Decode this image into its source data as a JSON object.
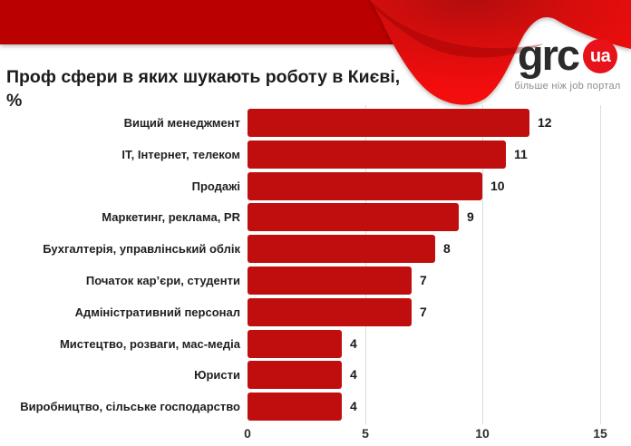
{
  "header": {
    "title": "Проф сфери в яких шукають роботу в Києві, %",
    "logo": {
      "text": "grc",
      "badge": "ua",
      "tagline": "більше ніж job портал"
    },
    "colors": {
      "band": "#BB0606",
      "swoosh_stops": [
        "#B30707",
        "#D60B0B",
        "#F31111"
      ],
      "accent_dark": "#8F0303",
      "badge_bg": "#E8121B"
    }
  },
  "chart_data": {
    "type": "bar",
    "orientation": "horizontal",
    "title": "Проф сфери в яких шукають роботу в Києві, %",
    "categories": [
      "Вищий менеджмент",
      "ІТ, Інтернет, телеком",
      "Продажі",
      "Маркетинг, реклама, PR",
      "Бухгалтерія, управлінський облік",
      "Початок кар’єри, студенти",
      "Адміністративний персонал",
      "Мистецтво, розваги, мас-медіа",
      "Юристи",
      "Виробництво, сільське господарство"
    ],
    "values": [
      12,
      11,
      10,
      9,
      8,
      7,
      7,
      4,
      4,
      4
    ],
    "xlim": [
      0,
      15
    ],
    "x_ticks": [
      0,
      5,
      10,
      15
    ],
    "bar_color": "#C00D0D",
    "grid": true,
    "gridline_color": "#DCDCDC",
    "value_labels": true,
    "legend": false
  }
}
